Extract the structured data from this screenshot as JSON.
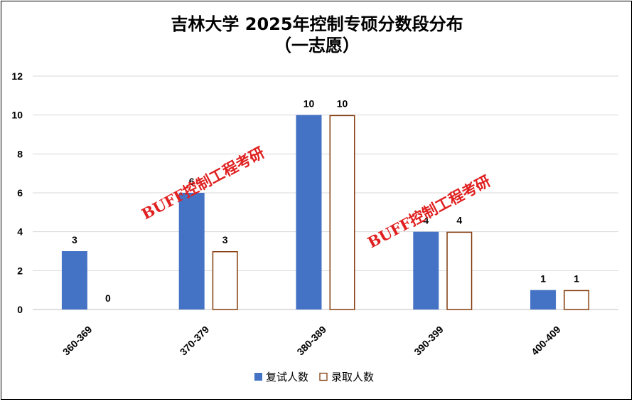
{
  "title_lines": [
    "吉林大学 2025年控制专硕分数段分布",
    "（一志愿）"
  ],
  "watermark": "BUFF控制工程考研",
  "colors": {
    "series1_fill": "#4472c4",
    "series2_fill": "#ffffff",
    "series2_stroke": "#843c0c",
    "grid": "#d9d9d9"
  },
  "chart_data": {
    "type": "bar",
    "categories": [
      "360-369",
      "370-379",
      "380-389",
      "390-399",
      "400-409"
    ],
    "series": [
      {
        "name": "复试人数",
        "values": [
          3,
          6,
          10,
          4,
          1
        ]
      },
      {
        "name": "录取人数",
        "values": [
          0,
          3,
          10,
          4,
          1
        ]
      }
    ],
    "ylim": [
      0,
      12
    ],
    "yticks": [
      0,
      2,
      4,
      6,
      8,
      10,
      12
    ],
    "grid": true,
    "legend": "bottom"
  }
}
